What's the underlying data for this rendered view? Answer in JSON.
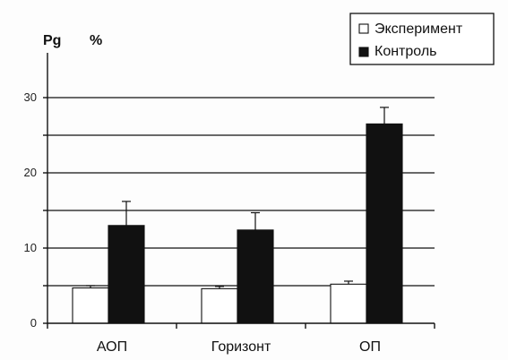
{
  "chart_data": {
    "type": "bar",
    "title": "",
    "unit_labels": [
      "Pg",
      "%"
    ],
    "xlabel": "",
    "ylabel": "",
    "categories": [
      "АОП",
      "Горизонт",
      "ОП"
    ],
    "series": [
      {
        "name": "Эксперимент",
        "color": "#ffffff",
        "values": [
          4.7,
          4.6,
          5.2
        ],
        "errors": [
          0.3,
          0.3,
          0.4
        ]
      },
      {
        "name": "Контроль",
        "color": "#111111",
        "values": [
          13.0,
          12.4,
          26.5
        ],
        "errors": [
          3.2,
          2.3,
          2.2
        ]
      }
    ],
    "ylim": [
      0,
      35
    ],
    "yticks": [
      0,
      10,
      20,
      30
    ],
    "ytick_labels": [
      "0",
      "10",
      "20",
      "30"
    ],
    "gridlines": [
      5,
      10,
      15,
      20,
      25,
      30
    ],
    "grid": true,
    "legend_position": "top-right"
  }
}
